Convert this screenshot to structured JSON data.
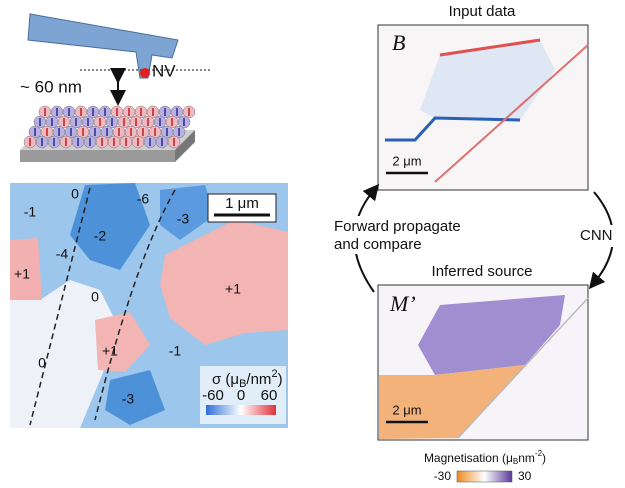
{
  "cantilever": {
    "distance": "~ 60 nm",
    "nv": "NV"
  },
  "map": {
    "scale_bar": "1 μm",
    "domains": [
      "-1",
      "0",
      "-6",
      "-3",
      "-2",
      "-4",
      "+1",
      "0",
      "+1",
      "0",
      "+1",
      "-1",
      "-3"
    ],
    "colorbar": {
      "label": {
        "prefix": "σ (μ",
        "sub": "B",
        "mid": "/nm",
        "sup": "2",
        "suffix": ")"
      },
      "ticks": [
        -60,
        0,
        60
      ]
    }
  },
  "input_panel": {
    "title": "Input data",
    "symbol": "B",
    "scale_bar": "2 μm"
  },
  "arrows": {
    "forward": [
      "Forward propagate",
      "and compare"
    ],
    "cnn": "CNN"
  },
  "output_panel": {
    "title": "Inferred source",
    "symbol": "M’",
    "scale_bar": "2 μm",
    "colorbar": {
      "label": {
        "prefix": "Magnetisation (μ",
        "sub": "B",
        "mid": "nm",
        "sup": "-2",
        "suffix": ")"
      },
      "ticks": [
        -30,
        30
      ]
    }
  }
}
